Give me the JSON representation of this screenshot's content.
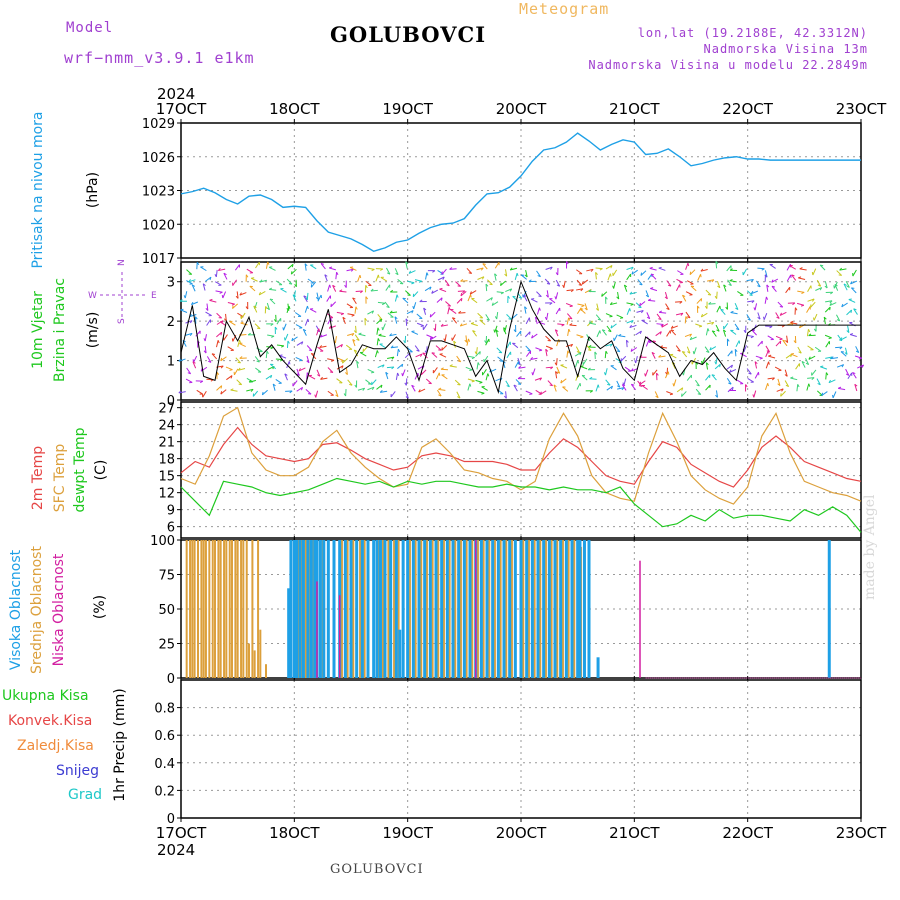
{
  "header": {
    "model_label": "Model",
    "model_version": "wrf−nmm_v3.9.1  e1km",
    "station": "GOLUBOVCI",
    "meteogram_label": "Meteogram",
    "lonlat": "lon,lat (19.2188E, 42.3312N)",
    "elevation": "Nadmorska Visina 13m",
    "model_elevation": "Nadmorska Visina u modelu 22.2849m"
  },
  "footer": {
    "station": "GOLUBOVCI",
    "credit": "made by Angel"
  },
  "time_axis": {
    "year": "2024",
    "labels": [
      "17OCT",
      "18OCT",
      "19OCT",
      "20OCT",
      "21OCT",
      "22OCT",
      "23OCT"
    ]
  },
  "colors": {
    "pressure": "#1ea0e6",
    "wind_label": "#1ec81e",
    "temp2m": "#e64646",
    "sfc_temp": "#dca03c",
    "dewpt": "#1ec81e",
    "high_cloud": "#1ea0e6",
    "mid_cloud": "#dca03c",
    "low_cloud": "#d21ea0",
    "total_precip": "#1ec81e",
    "conv_precip": "#e64646",
    "frz_precip": "#f08c3c",
    "snow": "#3c3cd2",
    "hail": "#1ec8c8"
  },
  "chart_data": [
    {
      "type": "line",
      "id": "pressure",
      "ylabel": [
        "Pritisak na nivou mora",
        "(hPa)"
      ],
      "ylim": [
        1017,
        1029
      ],
      "yticks": [
        1017,
        1020,
        1023,
        1026,
        1029
      ],
      "xlim": [
        0,
        6
      ],
      "grid": true,
      "series": [
        {
          "x": [
            0,
            0.1,
            0.2,
            0.3,
            0.4,
            0.5,
            0.6,
            0.7,
            0.8,
            0.9,
            1.0,
            1.1,
            1.2,
            1.3,
            1.4,
            1.5,
            1.6,
            1.7,
            1.8,
            1.9,
            2.0,
            2.1,
            2.2,
            2.3,
            2.4,
            2.5,
            2.6,
            2.7,
            2.8,
            2.9,
            3.0,
            3.1,
            3.2,
            3.3,
            3.4,
            3.5,
            3.6,
            3.7,
            3.8,
            3.9,
            4.0,
            4.1,
            4.2,
            4.3,
            4.4,
            4.5,
            4.6,
            4.7,
            4.8,
            4.9,
            5.0,
            5.1,
            5.2,
            5.3,
            5.4,
            5.5,
            5.6,
            5.7,
            5.8,
            5.9,
            6.0
          ],
          "values": [
            1022.7,
            1022.9,
            1023.2,
            1022.8,
            1022.2,
            1021.8,
            1022.5,
            1022.6,
            1022.2,
            1021.5,
            1021.6,
            1021.5,
            1020.3,
            1019.3,
            1019.0,
            1018.7,
            1018.2,
            1017.6,
            1017.9,
            1018.4,
            1018.6,
            1019.2,
            1019.7,
            1020.0,
            1020.1,
            1020.5,
            1021.7,
            1022.7,
            1022.8,
            1023.3,
            1024.3,
            1025.6,
            1026.6,
            1026.8,
            1027.3,
            1028.1,
            1027.4,
            1026.6,
            1027.1,
            1027.5,
            1027.3,
            1026.2,
            1026.3,
            1026.7,
            1026.0,
            1025.2,
            1025.4,
            1025.7,
            1025.9,
            1026.0,
            1025.8,
            1025.8,
            1025.7,
            1025.7,
            1025.7,
            1025.7,
            1025.7,
            1025.7,
            1025.7,
            1025.7,
            1025.7
          ]
        }
      ]
    },
    {
      "type": "line",
      "id": "wind",
      "ylabel": [
        "10m Vjetar",
        "Brzina i Pravac",
        "(m/s)"
      ],
      "compass": {
        "w": "W",
        "e": "E",
        "n": "N",
        "s": "S"
      },
      "ylim": [
        0,
        3.5
      ],
      "yticks": [
        0,
        1,
        2,
        3
      ],
      "xlim": [
        0,
        6
      ],
      "grid": true,
      "series": [
        {
          "name": "speed",
          "x": [
            0,
            0.1,
            0.2,
            0.3,
            0.4,
            0.5,
            0.6,
            0.7,
            0.8,
            0.9,
            1.0,
            1.1,
            1.2,
            1.3,
            1.4,
            1.5,
            1.6,
            1.7,
            1.8,
            1.9,
            2.0,
            2.1,
            2.2,
            2.3,
            2.4,
            2.5,
            2.6,
            2.7,
            2.8,
            2.9,
            3.0,
            3.1,
            3.2,
            3.3,
            3.4,
            3.5,
            3.6,
            3.7,
            3.8,
            3.9,
            4.0,
            4.1,
            4.2,
            4.3,
            4.4,
            4.5,
            4.6,
            4.7,
            4.8,
            4.9,
            5.0,
            5.1,
            5.2,
            5.3,
            5.4,
            5.5,
            5.6,
            5.7,
            5.8,
            5.9,
            6.0
          ],
          "values": [
            1.2,
            2.4,
            0.6,
            0.5,
            2.0,
            1.5,
            2.1,
            1.1,
            1.4,
            1.0,
            0.7,
            0.4,
            1.4,
            2.3,
            0.7,
            0.9,
            1.4,
            1.3,
            1.3,
            1.6,
            1.3,
            0.5,
            1.5,
            1.5,
            1.4,
            1.3,
            0.6,
            1.0,
            0.2,
            1.8,
            3.0,
            2.3,
            1.8,
            1.5,
            1.5,
            0.6,
            1.6,
            1.3,
            1.5,
            0.8,
            0.5,
            1.6,
            1.4,
            1.2,
            0.6,
            1.0,
            0.9,
            1.2,
            0.8,
            0.5,
            1.7,
            1.9,
            1.9,
            1.9,
            1.9,
            1.9,
            1.9,
            1.9,
            1.9,
            1.9,
            1.9
          ]
        }
      ]
    },
    {
      "type": "line",
      "id": "temperature",
      "ylabel": [
        "2m Temp",
        "SFC Temp",
        "dewpt Temp",
        "(C)"
      ],
      "ylim": [
        4,
        28
      ],
      "yticks": [
        6,
        9,
        12,
        15,
        18,
        21,
        24,
        27
      ],
      "xlim": [
        0,
        6
      ],
      "grid": true,
      "series": [
        {
          "name": "2m Temp",
          "x": [
            0,
            0.125,
            0.25,
            0.375,
            0.5,
            0.625,
            0.75,
            0.875,
            1.0,
            1.125,
            1.25,
            1.375,
            1.5,
            1.625,
            1.75,
            1.875,
            2.0,
            2.125,
            2.25,
            2.375,
            2.5,
            2.625,
            2.75,
            2.875,
            3.0,
            3.125,
            3.25,
            3.375,
            3.5,
            3.625,
            3.75,
            3.875,
            4.0,
            4.125,
            4.25,
            4.375,
            4.5,
            4.625,
            4.75,
            4.875,
            5.0,
            5.125,
            5.25,
            5.375,
            5.5,
            5.625,
            5.75,
            5.875,
            6.0
          ],
          "values": [
            15.5,
            17.5,
            16.5,
            20.5,
            23.5,
            20.5,
            18.5,
            18.0,
            17.5,
            18.0,
            20.5,
            20.8,
            19.5,
            18.0,
            17.0,
            16.0,
            16.5,
            18.5,
            19.0,
            18.5,
            17.5,
            17.5,
            17.5,
            17.0,
            16.0,
            16.0,
            19.0,
            21.5,
            20.0,
            17.5,
            15.0,
            14.0,
            13.5,
            17.5,
            21.0,
            20.0,
            17.0,
            15.5,
            14.0,
            13.0,
            16.0,
            20.0,
            22.0,
            20.0,
            17.5,
            16.5,
            15.5,
            14.5,
            14.0
          ]
        },
        {
          "name": "SFC Temp",
          "x": [
            0,
            0.125,
            0.25,
            0.375,
            0.5,
            0.625,
            0.75,
            0.875,
            1.0,
            1.125,
            1.25,
            1.375,
            1.5,
            1.625,
            1.75,
            1.875,
            2.0,
            2.125,
            2.25,
            2.375,
            2.5,
            2.625,
            2.75,
            2.875,
            3.0,
            3.125,
            3.25,
            3.375,
            3.5,
            3.625,
            3.75,
            3.875,
            4.0,
            4.125,
            4.25,
            4.375,
            4.5,
            4.625,
            4.75,
            4.875,
            5.0,
            5.125,
            5.25,
            5.375,
            5.5,
            5.625,
            5.75,
            5.875,
            6.0
          ],
          "values": [
            14.5,
            13.5,
            18.5,
            25.5,
            27.0,
            19.0,
            16.0,
            15.0,
            15.0,
            16.5,
            21.0,
            23.0,
            19.0,
            16.5,
            14.5,
            13.0,
            13.5,
            20.0,
            21.5,
            19.0,
            16.0,
            15.5,
            14.5,
            14.0,
            12.5,
            14.0,
            21.5,
            26.0,
            22.0,
            15.0,
            12.0,
            11.0,
            10.5,
            19.0,
            26.0,
            21.0,
            15.0,
            12.5,
            11.0,
            10.0,
            13.0,
            22.0,
            26.0,
            19.0,
            14.0,
            13.0,
            12.0,
            11.5,
            10.5
          ]
        },
        {
          "name": "dewpt Temp",
          "x": [
            0,
            0.125,
            0.25,
            0.375,
            0.5,
            0.625,
            0.75,
            0.875,
            1.0,
            1.125,
            1.25,
            1.375,
            1.5,
            1.625,
            1.75,
            1.875,
            2.0,
            2.125,
            2.25,
            2.375,
            2.5,
            2.625,
            2.75,
            2.875,
            3.0,
            3.125,
            3.25,
            3.375,
            3.5,
            3.625,
            3.75,
            3.875,
            4.0,
            4.125,
            4.25,
            4.375,
            4.5,
            4.625,
            4.75,
            4.875,
            5.0,
            5.125,
            5.25,
            5.375,
            5.5,
            5.625,
            5.75,
            5.875,
            6.0
          ],
          "values": [
            13.0,
            10.5,
            8.0,
            14.0,
            13.5,
            13.0,
            12.0,
            11.5,
            12.0,
            12.5,
            13.5,
            14.5,
            14.0,
            13.5,
            14.0,
            13.0,
            14.0,
            13.5,
            14.0,
            14.0,
            13.5,
            13.0,
            13.0,
            13.5,
            13.0,
            13.0,
            12.5,
            13.0,
            12.5,
            12.5,
            12.0,
            13.0,
            10.0,
            8.0,
            6.0,
            6.5,
            8.0,
            7.0,
            9.0,
            7.5,
            8.0,
            8.0,
            7.5,
            7.0,
            9.0,
            8.0,
            9.5,
            8.0,
            5.0
          ]
        }
      ]
    },
    {
      "type": "bar",
      "id": "cloud",
      "ylabel": [
        "Visoka Oblacnost",
        "Srednja Oblacnost",
        "Niska Oblacnost",
        "(%)"
      ],
      "ylim": [
        0,
        100
      ],
      "yticks": [
        0,
        25,
        50,
        75,
        100
      ],
      "xlim": [
        0,
        6
      ],
      "grid": true,
      "series": [
        {
          "name": "Visoka Oblacnost",
          "x": [
            0.95,
            0.97,
            1.0,
            1.02,
            1.05,
            1.08,
            1.12,
            1.15,
            1.18,
            1.2,
            1.23,
            1.26,
            1.3,
            1.35,
            1.4,
            1.45,
            1.5,
            1.55,
            1.6,
            1.65,
            1.7,
            1.73,
            1.76,
            1.8,
            1.85,
            1.9,
            1.93,
            1.96,
            2.0,
            2.05,
            2.1,
            2.15,
            2.2,
            2.25,
            2.3,
            2.35,
            2.4,
            2.45,
            2.5,
            2.55,
            2.6,
            2.65,
            2.7,
            2.75,
            2.8,
            2.85,
            2.9,
            2.95,
            3.0,
            3.05,
            3.1,
            3.15,
            3.2,
            3.25,
            3.3,
            3.35,
            3.4,
            3.45,
            3.5,
            3.52,
            3.56,
            3.6,
            3.68,
            5.72
          ],
          "values": [
            65,
            100,
            100,
            100,
            100,
            100,
            100,
            100,
            100,
            100,
            100,
            100,
            100,
            100,
            100,
            100,
            100,
            100,
            100,
            100,
            100,
            100,
            100,
            100,
            100,
            100,
            35,
            100,
            100,
            100,
            100,
            100,
            100,
            100,
            100,
            100,
            100,
            100,
            100,
            100,
            100,
            100,
            100,
            100,
            100,
            100,
            100,
            100,
            100,
            100,
            100,
            100,
            100,
            100,
            100,
            100,
            100,
            100,
            100,
            100,
            100,
            100,
            15,
            100
          ]
        },
        {
          "name": "Srednja Oblacnost",
          "x": [
            0.05,
            0.08,
            0.1,
            0.12,
            0.15,
            0.18,
            0.2,
            0.22,
            0.25,
            0.28,
            0.3,
            0.33,
            0.35,
            0.38,
            0.4,
            0.43,
            0.45,
            0.48,
            0.5,
            0.53,
            0.55,
            0.58,
            0.6,
            0.63,
            0.65,
            0.68,
            0.7,
            0.75,
            1.0,
            1.03,
            1.06,
            1.1,
            1.13,
            1.16,
            1.2,
            1.25,
            1.3,
            1.35,
            1.42,
            1.47,
            1.52,
            1.58,
            1.62,
            1.7,
            1.75,
            1.78,
            1.83,
            1.88,
            1.92,
            2.02,
            2.07,
            2.12,
            2.17,
            2.22,
            2.27,
            2.32,
            2.37,
            2.42,
            2.47,
            2.52,
            2.57,
            2.62,
            2.67,
            2.72,
            2.77,
            2.82,
            2.87,
            2.92,
            3.02,
            3.07,
            3.12,
            3.17,
            3.22,
            3.27,
            3.32,
            3.37,
            3.42,
            3.47,
            3.53
          ],
          "values": [
            100,
            100,
            100,
            100,
            100,
            100,
            100,
            100,
            100,
            100,
            100,
            100,
            100,
            100,
            100,
            100,
            100,
            100,
            100,
            100,
            100,
            100,
            25,
            100,
            20,
            100,
            35,
            10,
            100,
            100,
            100,
            100,
            100,
            100,
            100,
            100,
            100,
            100,
            100,
            100,
            100,
            100,
            100,
            100,
            100,
            100,
            100,
            100,
            100,
            100,
            100,
            100,
            100,
            100,
            100,
            100,
            100,
            100,
            100,
            100,
            100,
            100,
            100,
            100,
            100,
            100,
            100,
            100,
            100,
            100,
            100,
            100,
            100,
            100,
            100,
            100,
            100,
            100,
            95
          ]
        },
        {
          "name": "Niska Oblacnost",
          "x": [
            1.2,
            1.4,
            2.6,
            4.05
          ],
          "values": [
            70,
            60,
            100,
            85
          ]
        }
      ]
    },
    {
      "type": "bar",
      "id": "precip",
      "ylabel": [
        "1hr Precip (mm)"
      ],
      "legend": [
        "Ukupna Kisa",
        "Konvek.Kisa",
        "Zaledj.Kisa",
        "Snijeg",
        "Grad"
      ],
      "ylim": [
        0,
        1
      ],
      "yticks": [
        0,
        0.2,
        0.4,
        0.6,
        0.8
      ],
      "xlim": [
        0,
        6
      ],
      "grid": true,
      "series": []
    }
  ]
}
